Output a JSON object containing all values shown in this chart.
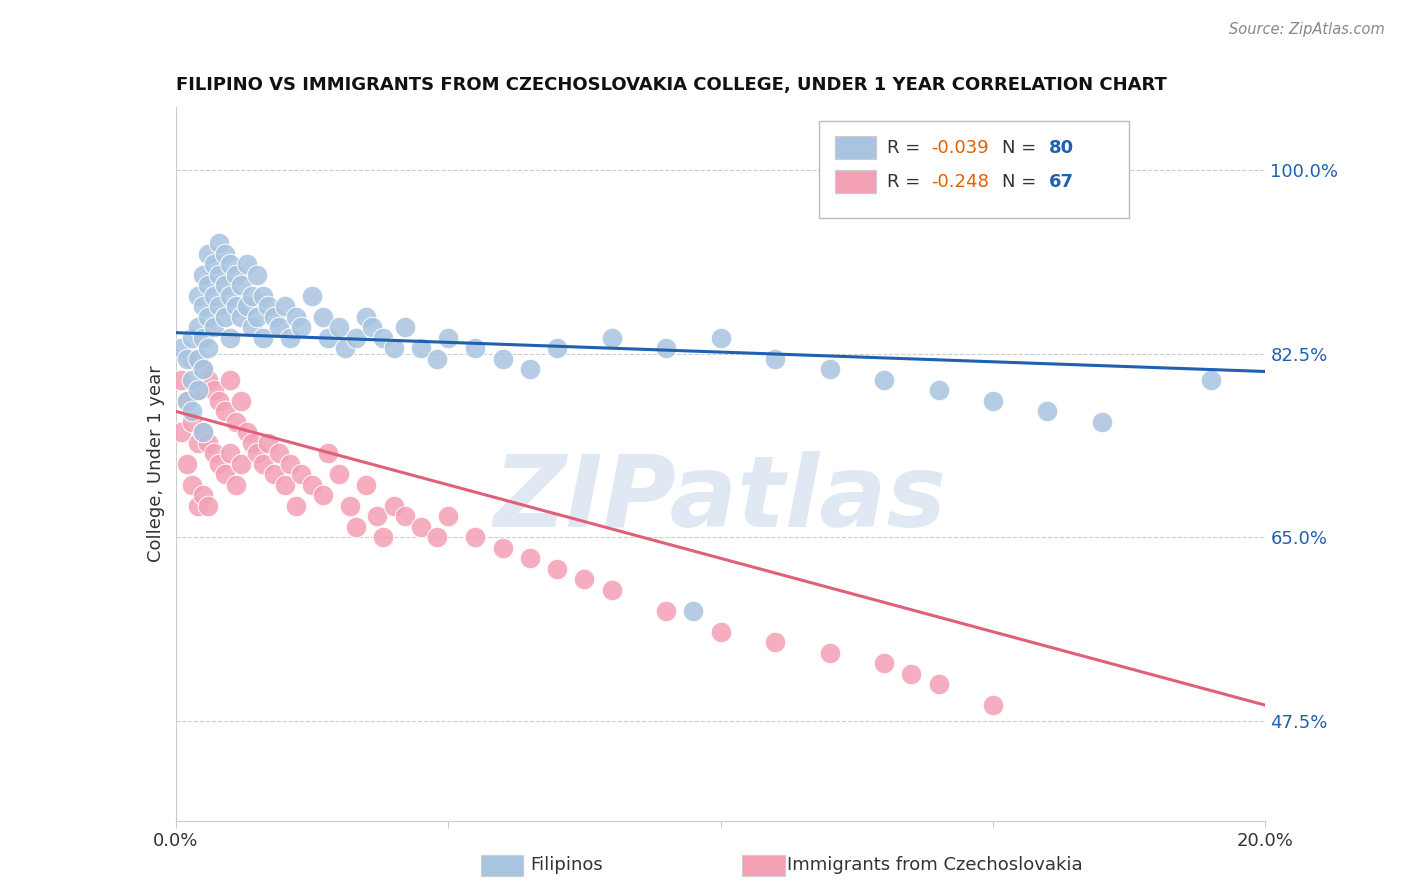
{
  "title": "FILIPINO VS IMMIGRANTS FROM CZECHOSLOVAKIA COLLEGE, UNDER 1 YEAR CORRELATION CHART",
  "source": "Source: ZipAtlas.com",
  "ylabel": "College, Under 1 year",
  "ytick_labels": [
    "100.0%",
    "82.5%",
    "65.0%",
    "47.5%"
  ],
  "ytick_values": [
    1.0,
    0.825,
    0.65,
    0.475
  ],
  "xlim": [
    0.0,
    0.2
  ],
  "ylim": [
    0.38,
    1.06
  ],
  "watermark_zip": "ZIP",
  "watermark_atlas": "atlas",
  "blue_R": -0.039,
  "blue_N": 80,
  "pink_R": -0.248,
  "pink_N": 67,
  "blue_color": "#a8c4e0",
  "pink_color": "#f4a0b4",
  "blue_line_color": "#2060b0",
  "pink_line_color": "#e0607a",
  "legend_label_blue": "Filipinos",
  "legend_label_pink": "Immigrants from Czechoslovakia",
  "blue_scatter_x": [
    0.001,
    0.002,
    0.002,
    0.003,
    0.003,
    0.003,
    0.004,
    0.004,
    0.004,
    0.004,
    0.005,
    0.005,
    0.005,
    0.005,
    0.005,
    0.006,
    0.006,
    0.006,
    0.006,
    0.007,
    0.007,
    0.007,
    0.008,
    0.008,
    0.008,
    0.009,
    0.009,
    0.009,
    0.01,
    0.01,
    0.01,
    0.011,
    0.011,
    0.012,
    0.012,
    0.013,
    0.013,
    0.014,
    0.014,
    0.015,
    0.015,
    0.016,
    0.016,
    0.017,
    0.018,
    0.019,
    0.02,
    0.021,
    0.022,
    0.023,
    0.025,
    0.027,
    0.028,
    0.03,
    0.031,
    0.033,
    0.035,
    0.036,
    0.038,
    0.04,
    0.042,
    0.045,
    0.048,
    0.05,
    0.055,
    0.06,
    0.065,
    0.07,
    0.08,
    0.09,
    0.095,
    0.1,
    0.11,
    0.12,
    0.13,
    0.14,
    0.15,
    0.16,
    0.17,
    0.19
  ],
  "blue_scatter_y": [
    0.83,
    0.78,
    0.82,
    0.84,
    0.8,
    0.77,
    0.88,
    0.85,
    0.82,
    0.79,
    0.9,
    0.87,
    0.84,
    0.81,
    0.75,
    0.92,
    0.89,
    0.86,
    0.83,
    0.91,
    0.88,
    0.85,
    0.93,
    0.9,
    0.87,
    0.92,
    0.89,
    0.86,
    0.91,
    0.88,
    0.84,
    0.9,
    0.87,
    0.89,
    0.86,
    0.91,
    0.87,
    0.88,
    0.85,
    0.9,
    0.86,
    0.88,
    0.84,
    0.87,
    0.86,
    0.85,
    0.87,
    0.84,
    0.86,
    0.85,
    0.88,
    0.86,
    0.84,
    0.85,
    0.83,
    0.84,
    0.86,
    0.85,
    0.84,
    0.83,
    0.85,
    0.83,
    0.82,
    0.84,
    0.83,
    0.82,
    0.81,
    0.83,
    0.84,
    0.83,
    0.58,
    0.84,
    0.82,
    0.81,
    0.8,
    0.79,
    0.78,
    0.77,
    0.76,
    0.8
  ],
  "pink_scatter_x": [
    0.001,
    0.001,
    0.002,
    0.002,
    0.003,
    0.003,
    0.003,
    0.004,
    0.004,
    0.004,
    0.005,
    0.005,
    0.005,
    0.006,
    0.006,
    0.006,
    0.007,
    0.007,
    0.008,
    0.008,
    0.009,
    0.009,
    0.01,
    0.01,
    0.011,
    0.011,
    0.012,
    0.012,
    0.013,
    0.014,
    0.015,
    0.016,
    0.017,
    0.018,
    0.019,
    0.02,
    0.021,
    0.022,
    0.023,
    0.025,
    0.027,
    0.028,
    0.03,
    0.032,
    0.033,
    0.035,
    0.037,
    0.038,
    0.04,
    0.042,
    0.045,
    0.048,
    0.05,
    0.055,
    0.06,
    0.065,
    0.07,
    0.075,
    0.08,
    0.09,
    0.1,
    0.11,
    0.12,
    0.13,
    0.135,
    0.14,
    0.15
  ],
  "pink_scatter_y": [
    0.8,
    0.75,
    0.78,
    0.72,
    0.82,
    0.76,
    0.7,
    0.79,
    0.74,
    0.68,
    0.81,
    0.75,
    0.69,
    0.8,
    0.74,
    0.68,
    0.79,
    0.73,
    0.78,
    0.72,
    0.77,
    0.71,
    0.8,
    0.73,
    0.76,
    0.7,
    0.78,
    0.72,
    0.75,
    0.74,
    0.73,
    0.72,
    0.74,
    0.71,
    0.73,
    0.7,
    0.72,
    0.68,
    0.71,
    0.7,
    0.69,
    0.73,
    0.71,
    0.68,
    0.66,
    0.7,
    0.67,
    0.65,
    0.68,
    0.67,
    0.66,
    0.65,
    0.67,
    0.65,
    0.64,
    0.63,
    0.62,
    0.61,
    0.6,
    0.58,
    0.56,
    0.55,
    0.54,
    0.53,
    0.52,
    0.51,
    0.49
  ],
  "blue_trend_x": [
    0.0,
    0.2
  ],
  "blue_trend_y": [
    0.845,
    0.808
  ],
  "pink_trend_x": [
    0.0,
    0.2
  ],
  "pink_trend_y": [
    0.77,
    0.49
  ],
  "r_color": "#e06000",
  "n_color": "#2060b0",
  "text_color": "#333333",
  "grid_color": "#cccccc",
  "source_color": "#888888"
}
